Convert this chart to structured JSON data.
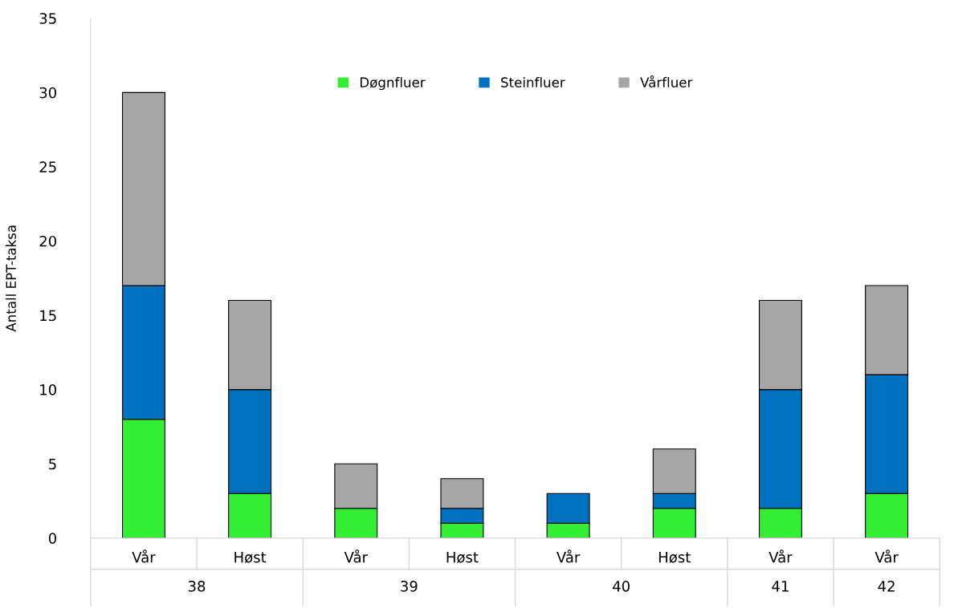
{
  "chart_data": {
    "type": "bar",
    "stacked": true,
    "ylabel": "Antall EPT-taksa",
    "categories": [
      "Vår",
      "Høst",
      "Vår",
      "Høst",
      "Vår",
      "Høst",
      "Vår",
      "Vår"
    ],
    "series": [
      {
        "name": "Døgnfluer",
        "color": "#33ee33",
        "values": [
          8,
          3,
          2,
          1,
          1,
          2,
          2,
          3
        ]
      },
      {
        "name": "Steinfluer",
        "color": "#0070c0",
        "values": [
          9,
          7,
          0,
          1,
          2,
          1,
          8,
          8
        ]
      },
      {
        "name": "Vårfluer",
        "color": "#a6a6a6",
        "values": [
          13,
          6,
          3,
          2,
          0,
          3,
          6,
          6
        ]
      }
    ],
    "annotations": [
      "38",
      "39",
      "40",
      "41",
      "42"
    ],
    "ylim": [
      0,
      35
    ],
    "yticks": [
      0,
      5,
      10,
      15,
      20,
      25,
      30,
      35
    ],
    "grid": false,
    "legend": "top"
  }
}
